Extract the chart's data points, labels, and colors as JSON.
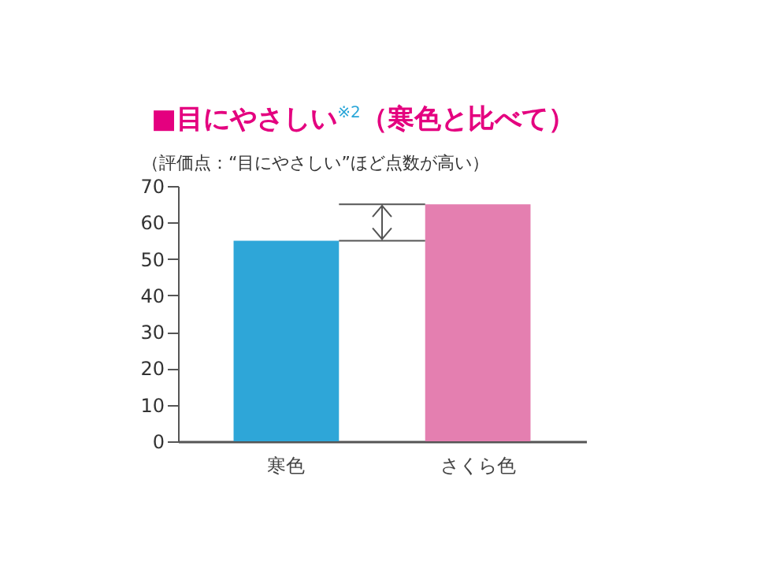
{
  "chart_data": {
    "type": "bar",
    "title": "■目にやさしい$^{※2}$（寒色と比べて）",
    "subtitle": "（評価点：“目にやさしい”ほど点数が高い）",
    "categories": [
      "寒色",
      "さくら色"
    ],
    "values": [
      55,
      65
    ],
    "colors": [
      "#2ea6d8",
      "#e47fb0"
    ],
    "ylim": [
      0,
      70
    ],
    "yticks": [
      0,
      10,
      20,
      30,
      40,
      50,
      60,
      70
    ],
    "grid": false
  }
}
